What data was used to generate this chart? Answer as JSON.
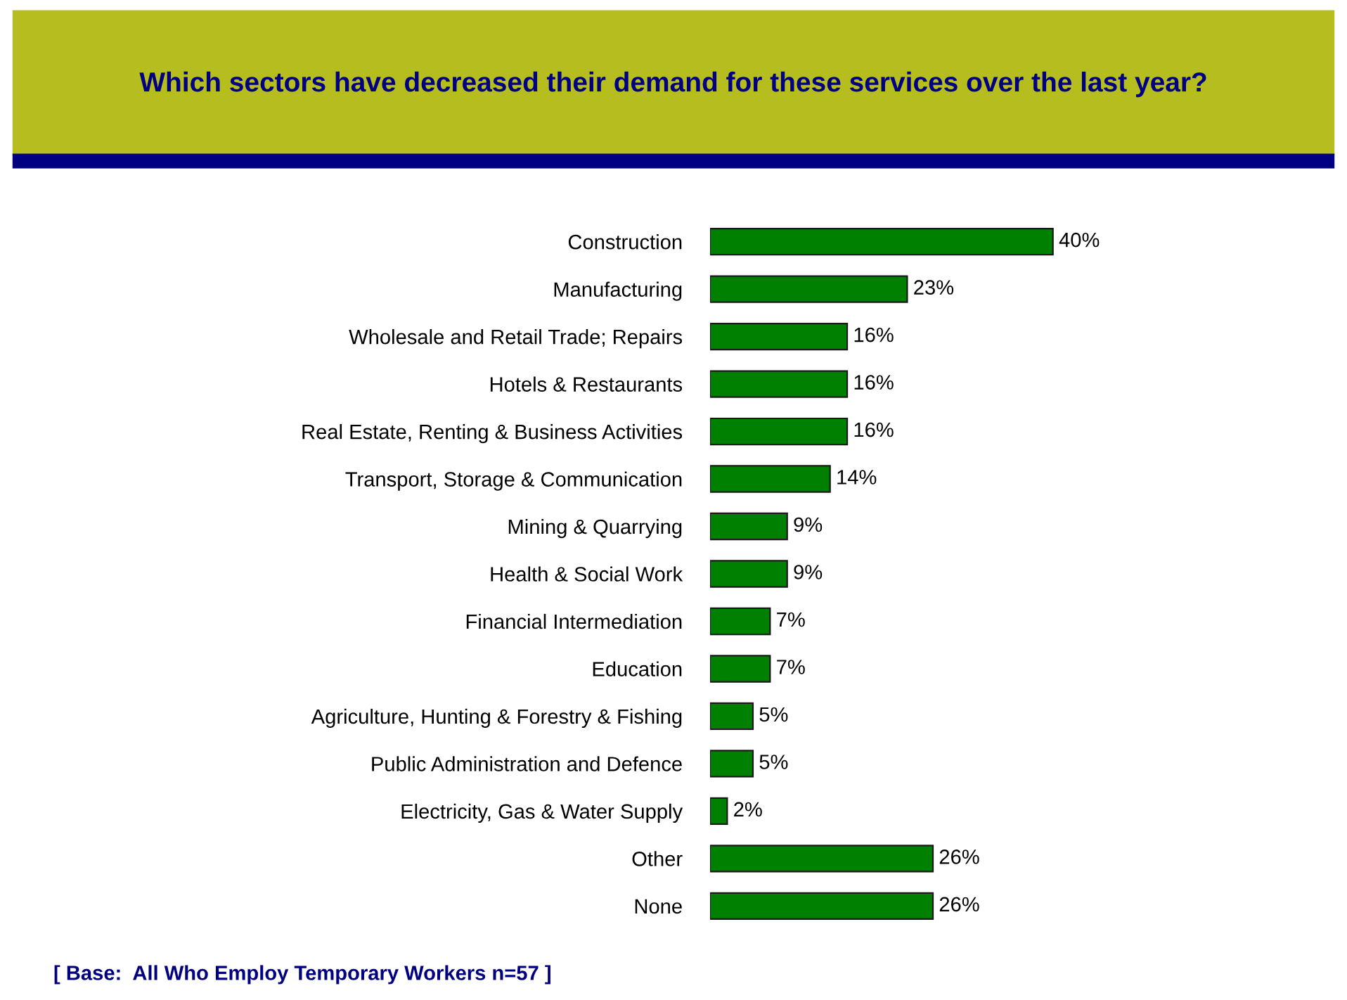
{
  "chart_data": {
    "type": "bar",
    "orientation": "horizontal",
    "title": "Which sectors have decreased their demand for these services over the last year?",
    "categories": [
      "Construction",
      "Manufacturing",
      "Wholesale and Retail Trade; Repairs",
      "Hotels & Restaurants",
      "Real Estate, Renting & Business Activities",
      "Transport, Storage & Communication",
      "Mining & Quarrying",
      "Health & Social Work",
      "Financial Intermediation",
      "Education",
      "Agriculture, Hunting & Forestry & Fishing",
      "Public Administration and Defence",
      "Electricity, Gas & Water Supply",
      "Other",
      "None"
    ],
    "values": [
      40,
      23,
      16,
      16,
      16,
      14,
      9,
      9,
      7,
      7,
      5,
      5,
      2,
      26,
      26
    ],
    "value_labels": [
      "40%",
      "23%",
      "16%",
      "16%",
      "16%",
      "14%",
      "9%",
      "9%",
      "7%",
      "7%",
      "5%",
      "5%",
      "2%",
      "26%",
      "26%"
    ],
    "color": "#008000",
    "grid": false,
    "legend": false,
    "annotations": [
      "[ Base:  All Who Employ Temporary Workers n=57 ]"
    ]
  }
}
